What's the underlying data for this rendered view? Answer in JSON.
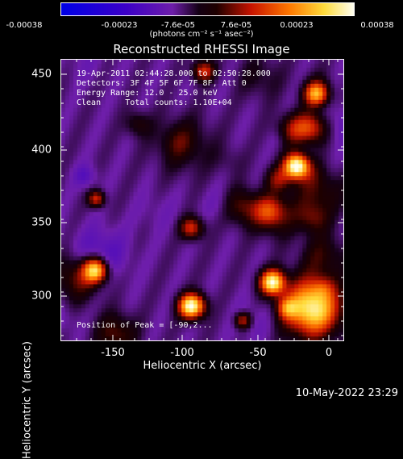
{
  "colorbar": {
    "tick_labels": [
      "-0.00038",
      "-0.00023",
      "-7.6e-05",
      "7.6e-05",
      "0.00023",
      "0.00038"
    ],
    "units_label": "(photons cm⁻² s⁻¹ asec⁻²)"
  },
  "plot": {
    "title": "Reconstructed RHESSI Image",
    "annotations": {
      "time_range": "19-Apr-2011 02:44:28.000 to 02:50:28.000",
      "detectors": "Detectors: 3F 4F 5F 6F 7F 8F, Att 0",
      "energy_range": "Energy Range: 12.0 - 25.0 keV",
      "method_counts": "Clean     Total counts: 1.10E+04",
      "peak_position": "Position of Peak = [-90,2..."
    },
    "x_axis": {
      "label": "Heliocentric X (arcsec)",
      "ticks": [
        "-150",
        "-100",
        "-50",
        "0"
      ]
    },
    "y_axis": {
      "label": "Heliocentric Y (arcsec)",
      "ticks": [
        "450",
        "400",
        "350",
        "300"
      ]
    }
  },
  "footer": {
    "date": "10-May-2022 23:29"
  }
}
